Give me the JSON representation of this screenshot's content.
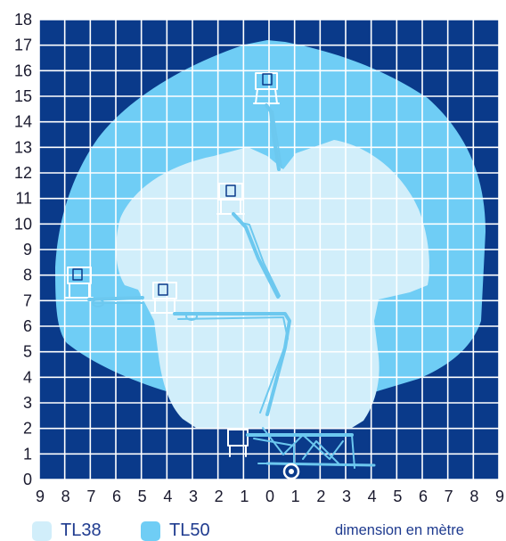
{
  "colors": {
    "grid_background": "#0a3a8a",
    "grid_lines": "#ffffff",
    "tl50_zone": "#6fcdf5",
    "tl38_zone": "#d1eefa",
    "lift": "#6cc8ef",
    "axis_text": "#1a1a2e",
    "legend_text": "#1f3b8f"
  },
  "axes": {
    "y_ticks": [
      "0",
      "1",
      "2",
      "3",
      "4",
      "5",
      "6",
      "7",
      "8",
      "9",
      "10",
      "11",
      "12",
      "13",
      "14",
      "15",
      "16",
      "17",
      "18"
    ],
    "x_ticks": [
      "9",
      "8",
      "7",
      "6",
      "5",
      "4",
      "3",
      "2",
      "1",
      "0",
      "1",
      "2",
      "3",
      "4",
      "5",
      "6",
      "7",
      "8",
      "9"
    ]
  },
  "legend": {
    "items": [
      {
        "label": "TL38",
        "color": "#d1eefa"
      },
      {
        "label": "TL50",
        "color": "#6fcdf5"
      }
    ]
  },
  "caption": "dimension en mètre"
}
